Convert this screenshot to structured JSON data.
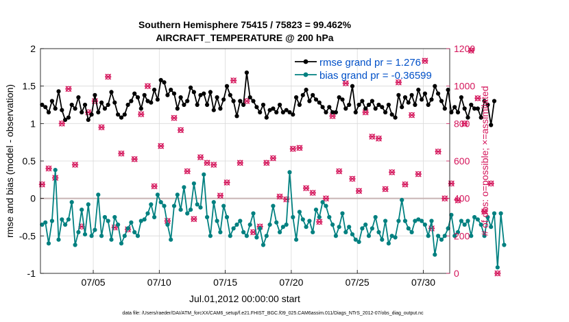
{
  "colors": {
    "rmse": "#000000",
    "bias": "#008080",
    "obs": "#d4145a",
    "legend_text": "#0050c8",
    "grid": "#d9d9d9",
    "zero_line": "#c8b4b4"
  },
  "chart_data": {
    "type": "line",
    "title": "Southern Hemisphere 75415 / 75823 = 99.462%",
    "subtitle": "AIRCRAFT_TEMPERATURE @ 200 hPa",
    "xlabel": "Jul.01,2012 00:00:00 start",
    "ylabel_left": "rmse and bias (model - observation)",
    "ylabel_right": "# of obs: o=possible; ×=assimilated",
    "footer": "data file: /Users/raeder/DAI/ATM_forcXX/CAM6_setup/f.e21.FHIST_BGC.f09_025.CAM6assim.011/Diags_NTrS_2012-07/obs_diag_output.nc",
    "xlim": [
      1,
      32
    ],
    "ylim_left": [
      -1,
      2
    ],
    "ylim_right": [
      0,
      1200
    ],
    "yticks_left": [
      -1,
      -0.5,
      0,
      0.5,
      1,
      1.5,
      2
    ],
    "yticklabels_left": [
      "-1",
      "-0.5",
      "0",
      "0.5",
      "1",
      "1.5",
      "2"
    ],
    "yticks_right": [
      0,
      200,
      400,
      600,
      800,
      1000,
      1200
    ],
    "yticklabels_right": [
      "0",
      "200",
      "400",
      "600",
      "800",
      "1000",
      "1200"
    ],
    "xticks": [
      5,
      10,
      15,
      20,
      25,
      30
    ],
    "xticklabels": [
      "07/05",
      "07/10",
      "07/15",
      "07/20",
      "07/25",
      "07/30"
    ],
    "legend": {
      "position": "top-right",
      "entries": [
        "rmse grand pr = 1.276",
        "bias grand pr = -0.36599"
      ]
    },
    "series": [
      {
        "name": "rmse",
        "axis": "left",
        "x_start": 1.125,
        "x_step": 0.25,
        "values": [
          1.25,
          1.22,
          1.15,
          1.3,
          1.2,
          1.43,
          1.18,
          1.05,
          1.08,
          1.25,
          1.2,
          1.35,
          1.15,
          1.25,
          1.05,
          1.12,
          1.38,
          1.15,
          1.28,
          1.2,
          1.25,
          1.42,
          1.28,
          1.12,
          1.08,
          1.12,
          1.25,
          1.3,
          1.4,
          1.35,
          1.2,
          1.38,
          1.3,
          1.28,
          1.45,
          1.32,
          1.58,
          1.55,
          1.38,
          1.45,
          1.4,
          1.2,
          1.35,
          1.25,
          1.3,
          1.48,
          1.42,
          1.25,
          1.38,
          1.4,
          1.25,
          1.42,
          1.18,
          1.35,
          1.2,
          1.32,
          1.5,
          1.38,
          1.3,
          1.1,
          1.3,
          1.25,
          1.68,
          1.35,
          1.3,
          1.22,
          1.15,
          1.25,
          1.08,
          1.18,
          1.2,
          1.15,
          1.25,
          1.15,
          1.18,
          1.15,
          1.12,
          1.35,
          1.25,
          1.38,
          1.45,
          1.3,
          1.38,
          1.32,
          1.28,
          1.22,
          1.15,
          1.22,
          1.15,
          1.15,
          1.35,
          1.32,
          1.2,
          1.25,
          1.5,
          1.15,
          1.25,
          1.3,
          1.2,
          1.25,
          1.3,
          1.2,
          1.25,
          1.22,
          1.15,
          1.25,
          1.12,
          1.08,
          1.38,
          1.22,
          1.35,
          1.28,
          1.38,
          1.25,
          1.45,
          1.32,
          1.4,
          1.25,
          1.32,
          1.5,
          1.4,
          1.3,
          1.2,
          1.45,
          1.15,
          1.22,
          1.15,
          1.35,
          1.2,
          1.08,
          1.25,
          1.2,
          1.2,
          1.08,
          1.3,
          1.25,
          0.98,
          1.3
        ]
      },
      {
        "name": "bias",
        "axis": "left",
        "x_start": 1.125,
        "x_step": 0.25,
        "values": [
          -0.35,
          -0.32,
          -0.6,
          -0.3,
          0.38,
          -0.55,
          -0.28,
          -0.35,
          -0.28,
          -0.05,
          -0.62,
          -0.45,
          -0.15,
          -0.48,
          -0.08,
          -0.5,
          -0.42,
          0.05,
          -0.5,
          -0.25,
          -0.3,
          -0.55,
          -0.25,
          -0.35,
          -0.6,
          -0.5,
          -0.4,
          -0.32,
          -0.45,
          -0.5,
          -0.3,
          -0.28,
          -0.2,
          -0.08,
          -0.25,
          0.05,
          -0.05,
          -0.1,
          -0.35,
          -0.55,
          -0.1,
          0.05,
          -0.15,
          0.15,
          -0.2,
          -0.15,
          0.2,
          -0.08,
          -0.12,
          0.32,
          -0.25,
          -0.5,
          -0.05,
          -0.3,
          -0.45,
          -0.1,
          -0.25,
          -0.5,
          -0.4,
          -0.35,
          -0.3,
          -0.45,
          -0.5,
          -0.35,
          -0.2,
          -0.52,
          -0.4,
          -0.62,
          -0.5,
          -0.35,
          -0.1,
          -0.32,
          -0.45,
          -0.38,
          -0.35,
          0.35,
          -0.25,
          -0.55,
          -0.18,
          -0.28,
          -0.38,
          -0.3,
          -0.45,
          -0.15,
          -0.25,
          -0.05,
          -0.1,
          -0.25,
          -0.35,
          -0.5,
          -0.38,
          -0.2,
          -0.45,
          -0.38,
          -0.48,
          -0.55,
          -0.58,
          -0.4,
          -0.35,
          -0.5,
          -0.4,
          -0.25,
          -0.45,
          -0.55,
          -0.3,
          -0.6,
          -0.5,
          -0.52,
          -0.3,
          -0.02,
          -0.3,
          -0.4,
          -0.45,
          -0.3,
          -0.28,
          -0.3,
          -0.35,
          -0.5,
          -0.3,
          -0.75,
          -0.5,
          -0.55,
          -0.5,
          -0.4,
          -0.22,
          -0.5,
          -0.45,
          -0.3,
          -0.35,
          -0.3,
          -0.5,
          -0.25,
          -0.28,
          -0.35,
          -0.5,
          -0.25,
          -0.38,
          -0.2,
          -0.92,
          -0.2,
          -0.62
        ]
      },
      {
        "name": "obs count",
        "axis": "right",
        "x_start": 1.125,
        "x_step": 0.5,
        "values": [
          475,
          560,
          510,
          800,
          985,
          580,
          250,
          860,
          920,
          780,
          1050,
          245,
          640,
          235,
          610,
          850,
          1000,
          465,
          680,
          280,
          830,
          765,
          545,
          290,
          620,
          590,
          580,
          415,
          485,
          1030,
          590,
          920,
          220,
          250,
          590,
          615,
          410,
          395,
          665,
          670,
          455,
          430,
          275,
          400,
          840,
          545,
          1015,
          505,
          440,
          860,
          730,
          720,
          450,
          540,
          1020,
          475,
          845,
          530,
          1135,
          240,
          650,
          400,
          480,
          390,
          800,
          1190,
          935,
          330,
          480,
          0
        ]
      }
    ]
  }
}
